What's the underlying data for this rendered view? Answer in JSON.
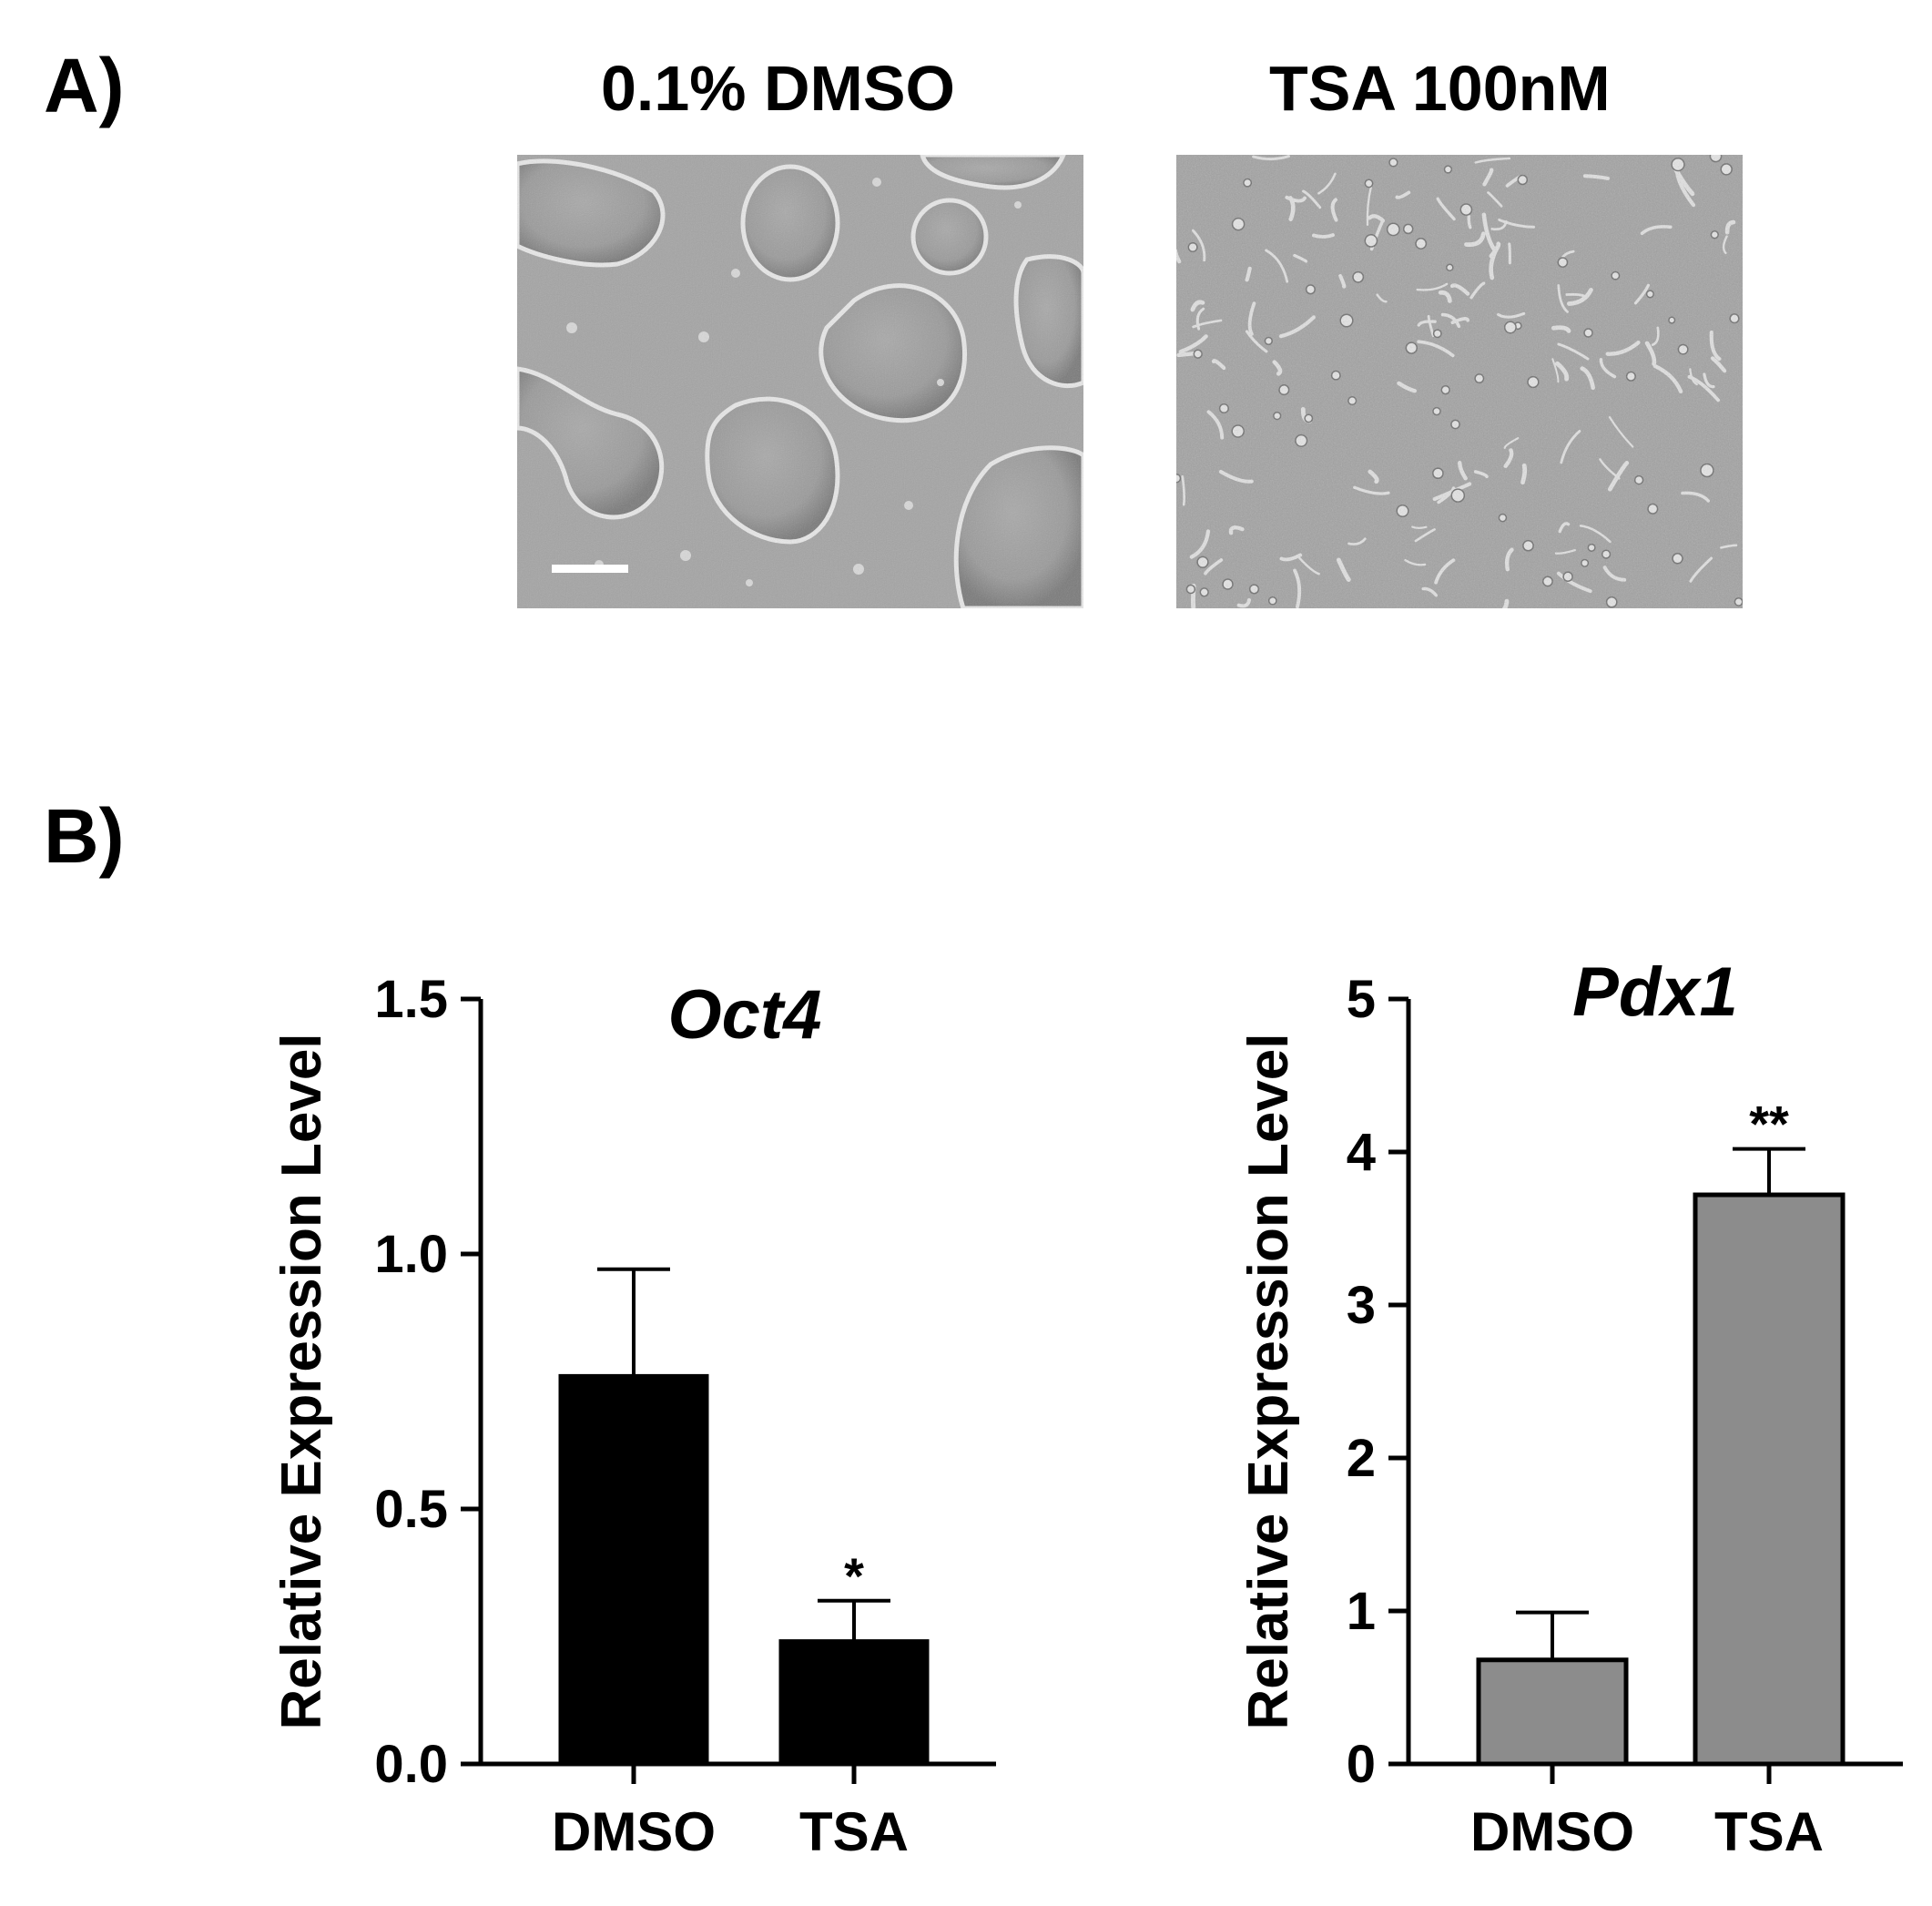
{
  "figure": {
    "panel_a": {
      "label": "A)",
      "images": [
        {
          "title": "0.1% DMSO",
          "kind": "micrograph-colonies",
          "has_scale_bar": true
        },
        {
          "title": "TSA 100nM",
          "kind": "micrograph-scattered",
          "has_scale_bar": false
        }
      ]
    },
    "panel_b": {
      "label": "B)"
    }
  },
  "colors": {
    "oct4_bar": "#000000",
    "pdx1_bar": "#8c8c8c",
    "axis": "#000000"
  },
  "chart_data": [
    {
      "type": "bar",
      "title": "Oct4",
      "ylabel": "Relative Expression Level",
      "xlabel": "",
      "categories": [
        "DMSO",
        "TSA"
      ],
      "values": [
        0.76,
        0.24
      ],
      "errors": [
        0.21,
        0.08
      ],
      "significance": [
        "",
        "*"
      ],
      "ylim": [
        0,
        1.5
      ],
      "yticks": [
        0,
        0.5,
        1.0,
        1.5
      ],
      "ytick_labels": [
        "0.0",
        "0.5",
        "1.0",
        "1.5"
      ],
      "bar_color": "#000000",
      "grid": false,
      "legend": "none"
    },
    {
      "type": "bar",
      "title": "Pdx1",
      "ylabel": "Relative Expression Level",
      "xlabel": "",
      "categories": [
        "DMSO",
        "TSA"
      ],
      "values": [
        0.68,
        3.72
      ],
      "errors": [
        0.31,
        0.3
      ],
      "significance": [
        "",
        "**"
      ],
      "ylim": [
        0,
        5
      ],
      "yticks": [
        0,
        1,
        2,
        3,
        4,
        5
      ],
      "ytick_labels": [
        "0",
        "1",
        "2",
        "3",
        "4",
        "5"
      ],
      "bar_color": "#8c8c8c",
      "grid": false,
      "legend": "none"
    }
  ]
}
